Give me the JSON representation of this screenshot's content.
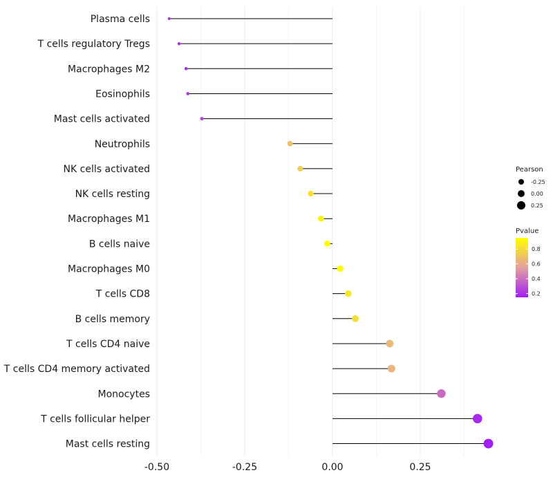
{
  "chart_data": {
    "type": "lollipop",
    "title": "",
    "xlabel": "",
    "ylabel": "",
    "xlim": [
      -0.5,
      0.45
    ],
    "x_ticks": [
      -0.5,
      -0.25,
      0.0,
      0.25
    ],
    "x_tick_labels": [
      "-0.50",
      "-0.25",
      "0.00",
      "0.25"
    ],
    "grid": true,
    "categories": [
      "Plasma cells",
      "T cells regulatory  Tregs",
      "Macrophages M2",
      "Eosinophils",
      "Mast cells activated",
      "Neutrophils",
      "NK cells activated",
      "NK cells resting",
      "Macrophages M1",
      "B cells naive",
      "Macrophages M0",
      "T cells CD8",
      "B cells memory",
      "T cells CD4 naive",
      "T cells CD4 memory activated",
      "Monocytes",
      "T cells follicular helper",
      "Mast cells resting"
    ],
    "pearson": [
      -0.465,
      -0.437,
      -0.417,
      -0.412,
      -0.372,
      -0.121,
      -0.092,
      -0.062,
      -0.033,
      -0.015,
      0.022,
      0.045,
      0.065,
      0.163,
      0.168,
      0.31,
      0.413,
      0.444
    ],
    "pvalue": [
      0.2,
      0.2,
      0.2,
      0.22,
      0.27,
      0.68,
      0.74,
      0.82,
      0.9,
      0.95,
      0.93,
      0.85,
      0.8,
      0.65,
      0.64,
      0.38,
      0.18,
      0.12
    ],
    "legend_size": {
      "title": "Pearson",
      "labels": [
        "-0.25",
        "0.00",
        "0.25"
      ],
      "values": [
        -0.25,
        0.0,
        0.25
      ]
    },
    "legend_color": {
      "title": "Pvalue",
      "labels": [
        "0.8",
        "0.6",
        "0.4",
        "0.2"
      ],
      "values": [
        0.8,
        0.6,
        0.4,
        0.2
      ],
      "range": [
        0.15,
        0.95
      ],
      "color_low": "#a020f0",
      "color_mid": "#e2a0a0",
      "color_high": "#ffff00"
    },
    "legend_position": "right"
  }
}
